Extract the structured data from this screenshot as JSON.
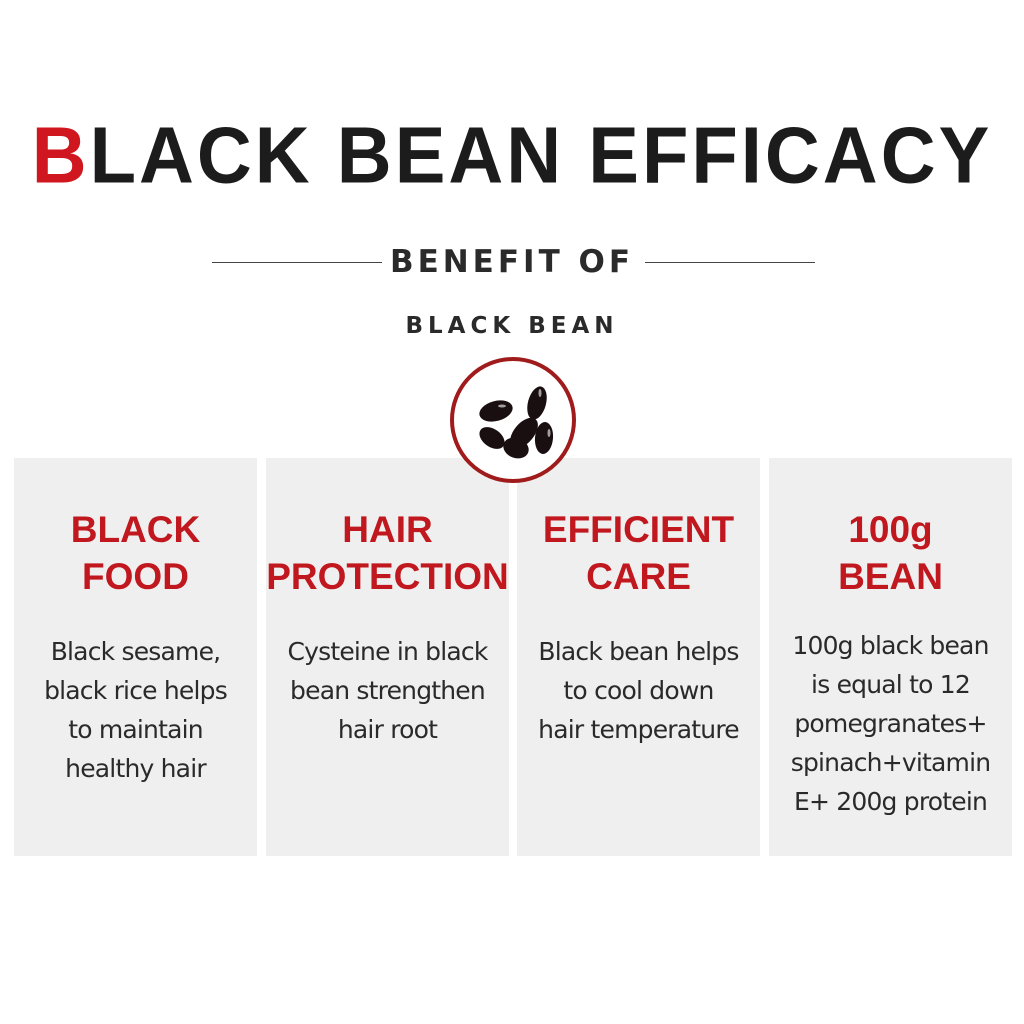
{
  "header": {
    "title_first_letter": "B",
    "title_rest": "LACK BEAN EFFICACY",
    "subtitle_line1": "BENEFIT OF",
    "subtitle_line2": "BLACK BEAN"
  },
  "icon": {
    "name": "black-beans-icon",
    "ring_color": "#a01c1c"
  },
  "colors": {
    "accent": "#c0181e",
    "panel": "#efefef",
    "text": "#2a2a2a"
  },
  "panels": [
    {
      "heading": "BLACK\nFOOD",
      "body": "Black sesame,\nblack rice helps\nto maintain\nhealthy hair"
    },
    {
      "heading": "HAIR\nPROTECTION",
      "body": "Cysteine in black\nbean strengthen\nhair root"
    },
    {
      "heading": "EFFICIENT\nCARE",
      "body": "Black bean helps\nto cool down\nhair temperature"
    },
    {
      "heading": "100g\nBEAN",
      "body": "100g black bean\nis equal to 12\npomegranates+\nspinach+vitamin\nE+ 200g protein"
    }
  ]
}
